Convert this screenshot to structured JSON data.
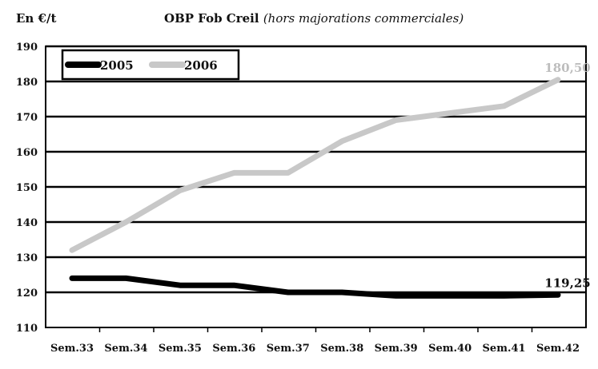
{
  "unit_label": "En €/t",
  "title_main": "OBP Fob Creil",
  "title_sub": "(hors majorations commerciales)",
  "chart_data": {
    "type": "line",
    "categories": [
      "Sem.33",
      "Sem.34",
      "Sem.35",
      "Sem.36",
      "Sem.37",
      "Sem.38",
      "Sem.39",
      "Sem.40",
      "Sem.41",
      "Sem.42"
    ],
    "yticks": [
      110,
      120,
      130,
      140,
      150,
      160,
      170,
      180,
      190
    ],
    "ylim": [
      110,
      190
    ],
    "grid": true,
    "legend_position": "top-left",
    "series": [
      {
        "name": "2005",
        "color": "#000000",
        "values": [
          124,
          124,
          122,
          122,
          120,
          120,
          119,
          119,
          119,
          119.25
        ],
        "end_label": "119,25",
        "end_label_color": "#111111"
      },
      {
        "name": "2006",
        "color": "#c8c8c8",
        "values": [
          132,
          140,
          149,
          154,
          154,
          163,
          169,
          171,
          173,
          180.5
        ],
        "end_label": "180,50",
        "end_label_color": "#bdbdbd"
      }
    ]
  }
}
